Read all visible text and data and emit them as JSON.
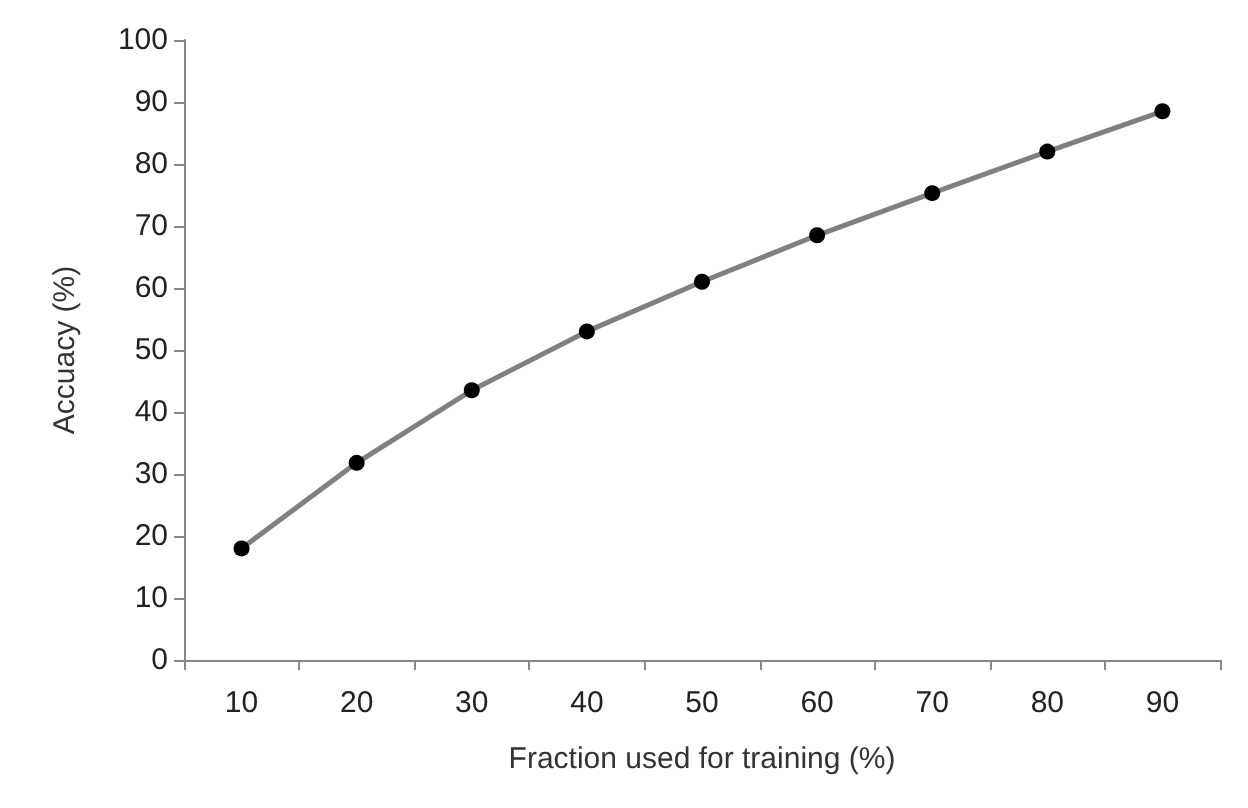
{
  "chart_data": {
    "type": "line",
    "xlabel": "Fraction used for training (%)",
    "ylabel": "Accuacy (%)",
    "categories": [
      "10",
      "20",
      "30",
      "40",
      "50",
      "60",
      "70",
      "80",
      "90"
    ],
    "series": [
      {
        "color": "#808080",
        "values": [
          18,
          31.8,
          43.5,
          53,
          61,
          68.5,
          75.3,
          82,
          88.5
        ]
      }
    ],
    "ylim": [
      0,
      100
    ],
    "yticks": [
      0,
      10,
      20,
      30,
      40,
      50,
      60,
      70,
      80,
      90,
      100
    ],
    "grid": false,
    "marker": "circle",
    "line_style": "solid"
  }
}
